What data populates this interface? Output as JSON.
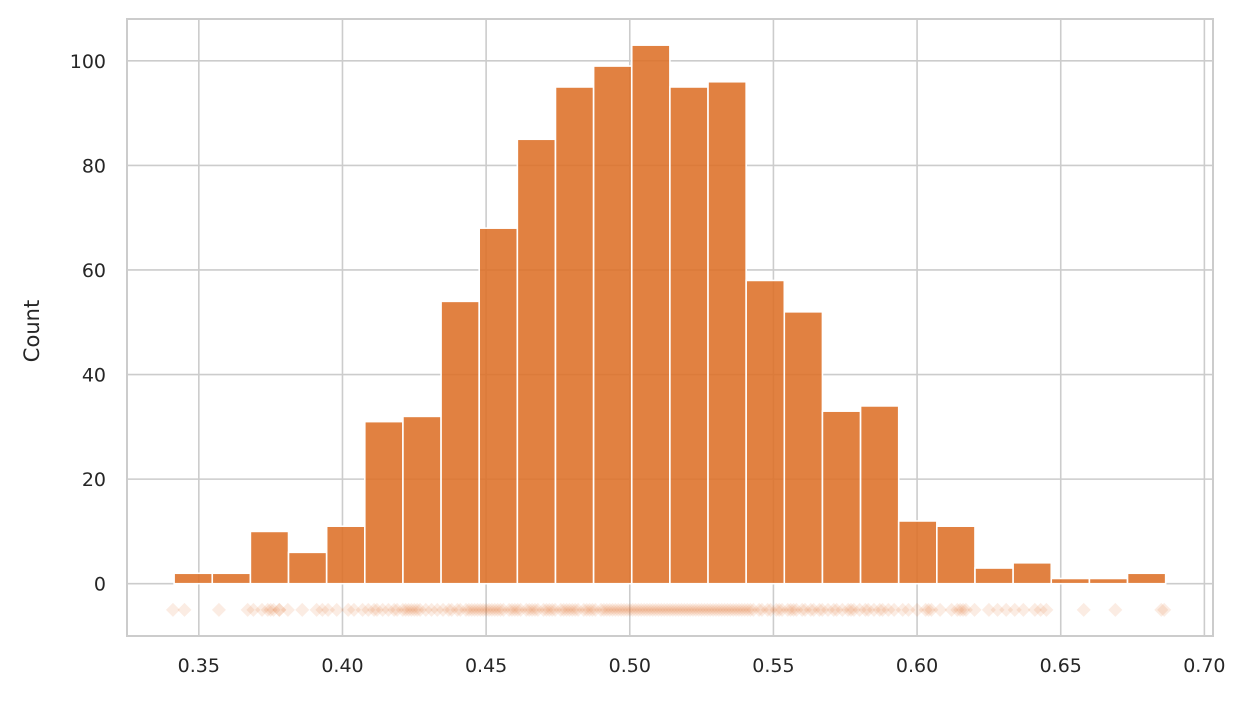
{
  "chart_data": {
    "type": "bar",
    "subtype": "histogram_with_rug",
    "title": "",
    "xlabel": "",
    "ylabel": "Count",
    "xlim": [
      0.325,
      0.703
    ],
    "ylim": [
      -10,
      108
    ],
    "x_ticks": [
      0.35,
      0.4,
      0.45,
      0.5,
      0.55,
      0.6,
      0.65,
      0.7
    ],
    "x_tick_labels": [
      "0.35",
      "0.40",
      "0.45",
      "0.50",
      "0.55",
      "0.60",
      "0.65",
      "0.70"
    ],
    "y_ticks": [
      0,
      20,
      40,
      60,
      80,
      100
    ],
    "y_tick_labels": [
      "0",
      "20",
      "40",
      "60",
      "80",
      "100"
    ],
    "grid": true,
    "color": "#dd7027",
    "bin_start": 0.3414,
    "bin_width": 0.013274,
    "counts": [
      2,
      2,
      10,
      6,
      11,
      31,
      32,
      54,
      68,
      85,
      95,
      99,
      103,
      95,
      96,
      58,
      52,
      33,
      34,
      12,
      11,
      3,
      4,
      1,
      1,
      2
    ],
    "rug": {
      "y": -5,
      "marker": "diamond",
      "points": [
        0.341,
        0.345,
        0.357,
        0.367,
        0.369,
        0.372,
        0.374,
        0.375,
        0.376,
        0.378,
        0.378,
        0.381,
        0.386,
        0.391,
        0.393,
        0.395,
        0.398,
        0.402,
        0.404,
        0.407,
        0.409,
        0.411,
        0.412,
        0.414,
        0.416,
        0.418,
        0.419,
        0.421,
        0.422,
        0.423,
        0.424,
        0.425,
        0.426,
        0.427,
        0.429,
        0.431,
        0.433,
        0.435,
        0.437,
        0.438,
        0.44,
        0.441,
        0.443,
        0.444,
        0.445,
        0.446,
        0.447,
        0.448,
        0.449,
        0.45,
        0.451,
        0.452,
        0.453,
        0.454,
        0.455,
        0.456,
        0.458,
        0.459,
        0.46,
        0.461,
        0.462,
        0.464,
        0.465,
        0.466,
        0.467,
        0.468,
        0.47,
        0.471,
        0.472,
        0.473,
        0.474,
        0.476,
        0.477,
        0.478,
        0.479,
        0.48,
        0.481,
        0.482,
        0.484,
        0.485,
        0.486,
        0.487,
        0.488,
        0.49,
        0.491,
        0.492,
        0.493,
        0.494,
        0.495,
        0.496,
        0.497,
        0.498,
        0.499,
        0.5,
        0.501,
        0.502,
        0.503,
        0.504,
        0.505,
        0.506,
        0.507,
        0.508,
        0.509,
        0.51,
        0.511,
        0.512,
        0.513,
        0.514,
        0.515,
        0.516,
        0.517,
        0.518,
        0.519,
        0.52,
        0.521,
        0.522,
        0.523,
        0.524,
        0.525,
        0.526,
        0.527,
        0.528,
        0.529,
        0.53,
        0.531,
        0.532,
        0.533,
        0.534,
        0.535,
        0.536,
        0.537,
        0.538,
        0.539,
        0.54,
        0.541,
        0.542,
        0.543,
        0.545,
        0.546,
        0.548,
        0.549,
        0.551,
        0.552,
        0.553,
        0.555,
        0.556,
        0.557,
        0.558,
        0.56,
        0.561,
        0.563,
        0.564,
        0.566,
        0.567,
        0.569,
        0.571,
        0.572,
        0.574,
        0.576,
        0.577,
        0.578,
        0.58,
        0.582,
        0.583,
        0.585,
        0.587,
        0.588,
        0.59,
        0.592,
        0.595,
        0.597,
        0.6,
        0.603,
        0.604,
        0.605,
        0.608,
        0.612,
        0.614,
        0.615,
        0.616,
        0.617,
        0.62,
        0.625,
        0.628,
        0.631,
        0.634,
        0.637,
        0.641,
        0.643,
        0.645,
        0.658,
        0.669,
        0.685,
        0.686
      ]
    }
  }
}
